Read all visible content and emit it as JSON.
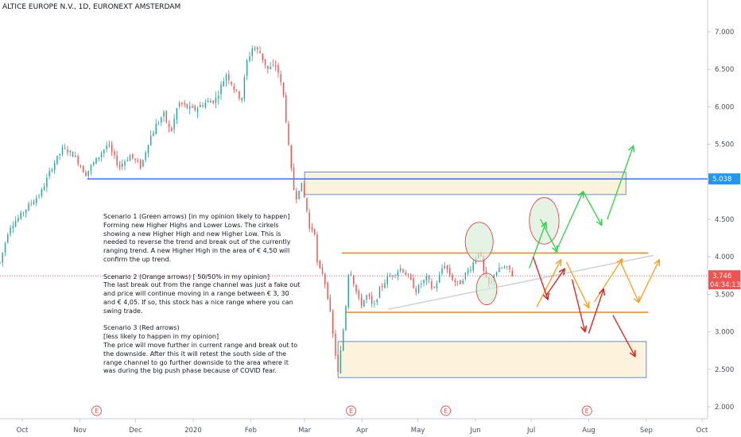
{
  "header": {
    "symbol_line": "ALTICE EUROPE N.V., 1D, EURONEXT AMSTERDAM"
  },
  "colors": {
    "up": "#26a69a",
    "down": "#ef5350",
    "green_arrow": "#2fd14a",
    "orange_arrow": "#f7a11a",
    "red_arrow": "#e21b1b",
    "blue_line": "#2962ff",
    "orange_line": "#f57c00",
    "channel_line": "#d1d4dc",
    "zone_fill": "#fdf3dc",
    "zone_border": "#3f75c9",
    "price_label": "#ef5350",
    "level_label": "#2196f3",
    "circle": "#e04848",
    "circle_fill": "#d6edd5"
  },
  "annotations": [
    {
      "name": "scenario-1",
      "text": "Scenario 1 (Green arrows) [in my opinion likely to happen]\nForming new Higher Highs and Lower Lows. The cirkels showing a new Higher High and new Higher Low. This is needed to reverse the trend and break out of the currently ranging trend. A new Higher High in the area of € 4,50  will confirm the up trend."
    },
    {
      "name": "scenario-2",
      "text": "Scenario 2 (Orange arrows) [ 50/50% in my opinion]\nThe last break out from the range channel was just a fake out and price will continue moving in a range between € 3, 30 and € 4,05. If so, this stock has a nice range where you can swing trade."
    },
    {
      "name": "scenario-3",
      "text": "Scenario 3 (Red arrows)\n[less likely to happen in my opinion]\nThe price will move further in current range and break out to the downside. After this it will retest the south side of the range channel to go further downside to the area where it was during the big push phase because of COVID fear."
    }
  ],
  "price_labels": {
    "current": "3.746",
    "countdown": "04:34:13",
    "level": "5.038"
  },
  "event_marker_text": "E",
  "chart_data": {
    "type": "candlestick",
    "title": "ALTICE EUROPE N.V., 1D, EURONEXT AMSTERDAM",
    "xlabel": "",
    "ylabel": "",
    "x_ticks": [
      "Oct",
      "Nov",
      "Dec",
      "2020",
      "Feb",
      "Mar",
      "Apr",
      "May",
      "Jun",
      "Jul",
      "Aug",
      "Sep",
      "Oct"
    ],
    "x_tick_days": [
      0,
      31,
      61,
      92,
      123,
      152,
      183,
      213,
      244,
      274,
      305,
      336,
      366
    ],
    "y_ticks": [
      "2.000",
      "2.500",
      "3.000",
      "3.500",
      "4.000",
      "4.500",
      "5.000",
      "5.500",
      "6.000",
      "6.500",
      "7.000"
    ],
    "ylim": [
      1.9,
      7.3
    ],
    "x_range_days": [
      -12,
      369
    ],
    "last_price": 3.746,
    "levels": [
      {
        "name": "resistance-blue",
        "y": 5.038,
        "from_day": 35,
        "to_day": 369
      },
      {
        "name": "range-top-orange",
        "y": 4.05,
        "from_day": 172,
        "to_day": 337
      },
      {
        "name": "range-bottom-orange",
        "y": 3.26,
        "from_day": 174,
        "to_day": 337
      }
    ],
    "channel_line": {
      "from": [
        197,
        3.3
      ],
      "to": [
        340,
        4.02
      ]
    },
    "zones": [
      {
        "name": "upper-zone",
        "from_day": 152,
        "to_day": 325,
        "y_low": 4.83,
        "y_high": 5.13
      },
      {
        "name": "lower-zone",
        "from_day": 170,
        "to_day": 336,
        "y_low": 2.39,
        "y_high": 2.87
      }
    ],
    "circles": [
      {
        "name": "higher-high-circle",
        "day": 246,
        "y": 4.2,
        "rx_days": 7.5,
        "ry": 0.26
      },
      {
        "name": "higher-low-circle",
        "day": 250,
        "y": 3.57,
        "rx_days": 5.5,
        "ry": 0.21
      },
      {
        "name": "projected-high-circle",
        "day": 281,
        "y": 4.48,
        "rx_days": 8,
        "ry": 0.31
      }
    ],
    "arrows": [
      {
        "color": "green_arrow",
        "from": [
          273,
          3.85
        ],
        "to": [
          282,
          4.46
        ]
      },
      {
        "color": "green_arrow",
        "from": [
          279,
          4.5
        ],
        "to": [
          288,
          4.07
        ]
      },
      {
        "color": "green_arrow",
        "from": [
          287,
          4.05
        ],
        "to": [
          302,
          4.87
        ]
      },
      {
        "color": "green_arrow",
        "from": [
          302,
          4.87
        ],
        "to": [
          312,
          4.42
        ]
      },
      {
        "color": "green_arrow",
        "from": [
          315,
          4.5
        ],
        "to": [
          329,
          5.48
        ]
      },
      {
        "color": "orange_arrow",
        "from": [
          277,
          3.33
        ],
        "to": [
          290,
          3.96
        ]
      },
      {
        "color": "orange_arrow",
        "from": [
          293,
          3.93
        ],
        "to": [
          305,
          3.32
        ]
      },
      {
        "color": "orange_arrow",
        "from": [
          308,
          3.4
        ],
        "to": [
          323,
          3.97
        ]
      },
      {
        "color": "orange_arrow",
        "from": [
          322,
          3.94
        ],
        "to": [
          332,
          3.39
        ]
      },
      {
        "color": "orange_arrow",
        "from": [
          332,
          3.4
        ],
        "to": [
          343,
          3.96
        ]
      },
      {
        "color": "red_arrow",
        "from": [
          275,
          4.0
        ],
        "to": [
          283,
          3.43
        ]
      },
      {
        "color": "red_arrow",
        "from": [
          282,
          3.48
        ],
        "to": [
          292,
          3.84
        ]
      },
      {
        "color": "red_arrow",
        "from": [
          296,
          3.7
        ],
        "to": [
          303,
          3.0
        ]
      },
      {
        "color": "red_arrow",
        "from": [
          305,
          2.98
        ],
        "to": [
          313,
          3.57
        ]
      },
      {
        "color": "red_arrow",
        "from": [
          318,
          3.22
        ],
        "to": [
          330,
          2.67
        ]
      }
    ],
    "event_days": [
      40,
      177,
      228,
      304
    ],
    "price_path": [
      [
        -12,
        3.92
      ],
      [
        -7,
        4.4
      ],
      [
        -2,
        4.52
      ],
      [
        4,
        4.7
      ],
      [
        10,
        4.85
      ],
      [
        16,
        5.2
      ],
      [
        22,
        5.45
      ],
      [
        28,
        5.35
      ],
      [
        34,
        5.1
      ],
      [
        40,
        5.3
      ],
      [
        46,
        5.5
      ],
      [
        52,
        5.2
      ],
      [
        58,
        5.35
      ],
      [
        64,
        5.2
      ],
      [
        68,
        5.55
      ],
      [
        72,
        5.75
      ],
      [
        76,
        5.9
      ],
      [
        80,
        5.65
      ],
      [
        84,
        6.05
      ],
      [
        88,
        6.0
      ],
      [
        92,
        5.95
      ],
      [
        98,
        6.05
      ],
      [
        104,
        6.1
      ],
      [
        110,
        6.45
      ],
      [
        115,
        6.2
      ],
      [
        118,
        6.1
      ],
      [
        121,
        6.6
      ],
      [
        124,
        6.8
      ],
      [
        128,
        6.72
      ],
      [
        132,
        6.5
      ],
      [
        137,
        6.55
      ],
      [
        141,
        6.1
      ],
      [
        144,
        5.3
      ],
      [
        147,
        4.75
      ],
      [
        150,
        5.0
      ],
      [
        153,
        4.65
      ],
      [
        155,
        4.3
      ],
      [
        157,
        4.45
      ],
      [
        159,
        3.85
      ],
      [
        162,
        3.78
      ],
      [
        165,
        3.4
      ],
      [
        168,
        2.8
      ],
      [
        170,
        2.45
      ],
      [
        172,
        2.85
      ],
      [
        174,
        3.3
      ],
      [
        176,
        3.9
      ],
      [
        179,
        3.6
      ],
      [
        182,
        3.35
      ],
      [
        186,
        3.5
      ],
      [
        189,
        3.3
      ],
      [
        192,
        3.55
      ],
      [
        196,
        3.7
      ],
      [
        200,
        3.78
      ],
      [
        204,
        3.85
      ],
      [
        208,
        3.72
      ],
      [
        212,
        3.55
      ],
      [
        215,
        3.65
      ],
      [
        218,
        3.72
      ],
      [
        221,
        3.55
      ],
      [
        224,
        3.7
      ],
      [
        227,
        3.92
      ],
      [
        231,
        3.72
      ],
      [
        235,
        3.62
      ],
      [
        238,
        3.75
      ],
      [
        242,
        3.88
      ],
      [
        246,
        4.1
      ],
      [
        249,
        3.72
      ],
      [
        252,
        3.6
      ],
      [
        254,
        3.78
      ],
      [
        258,
        3.85
      ],
      [
        262,
        3.84
      ],
      [
        264,
        3.75
      ]
    ]
  }
}
